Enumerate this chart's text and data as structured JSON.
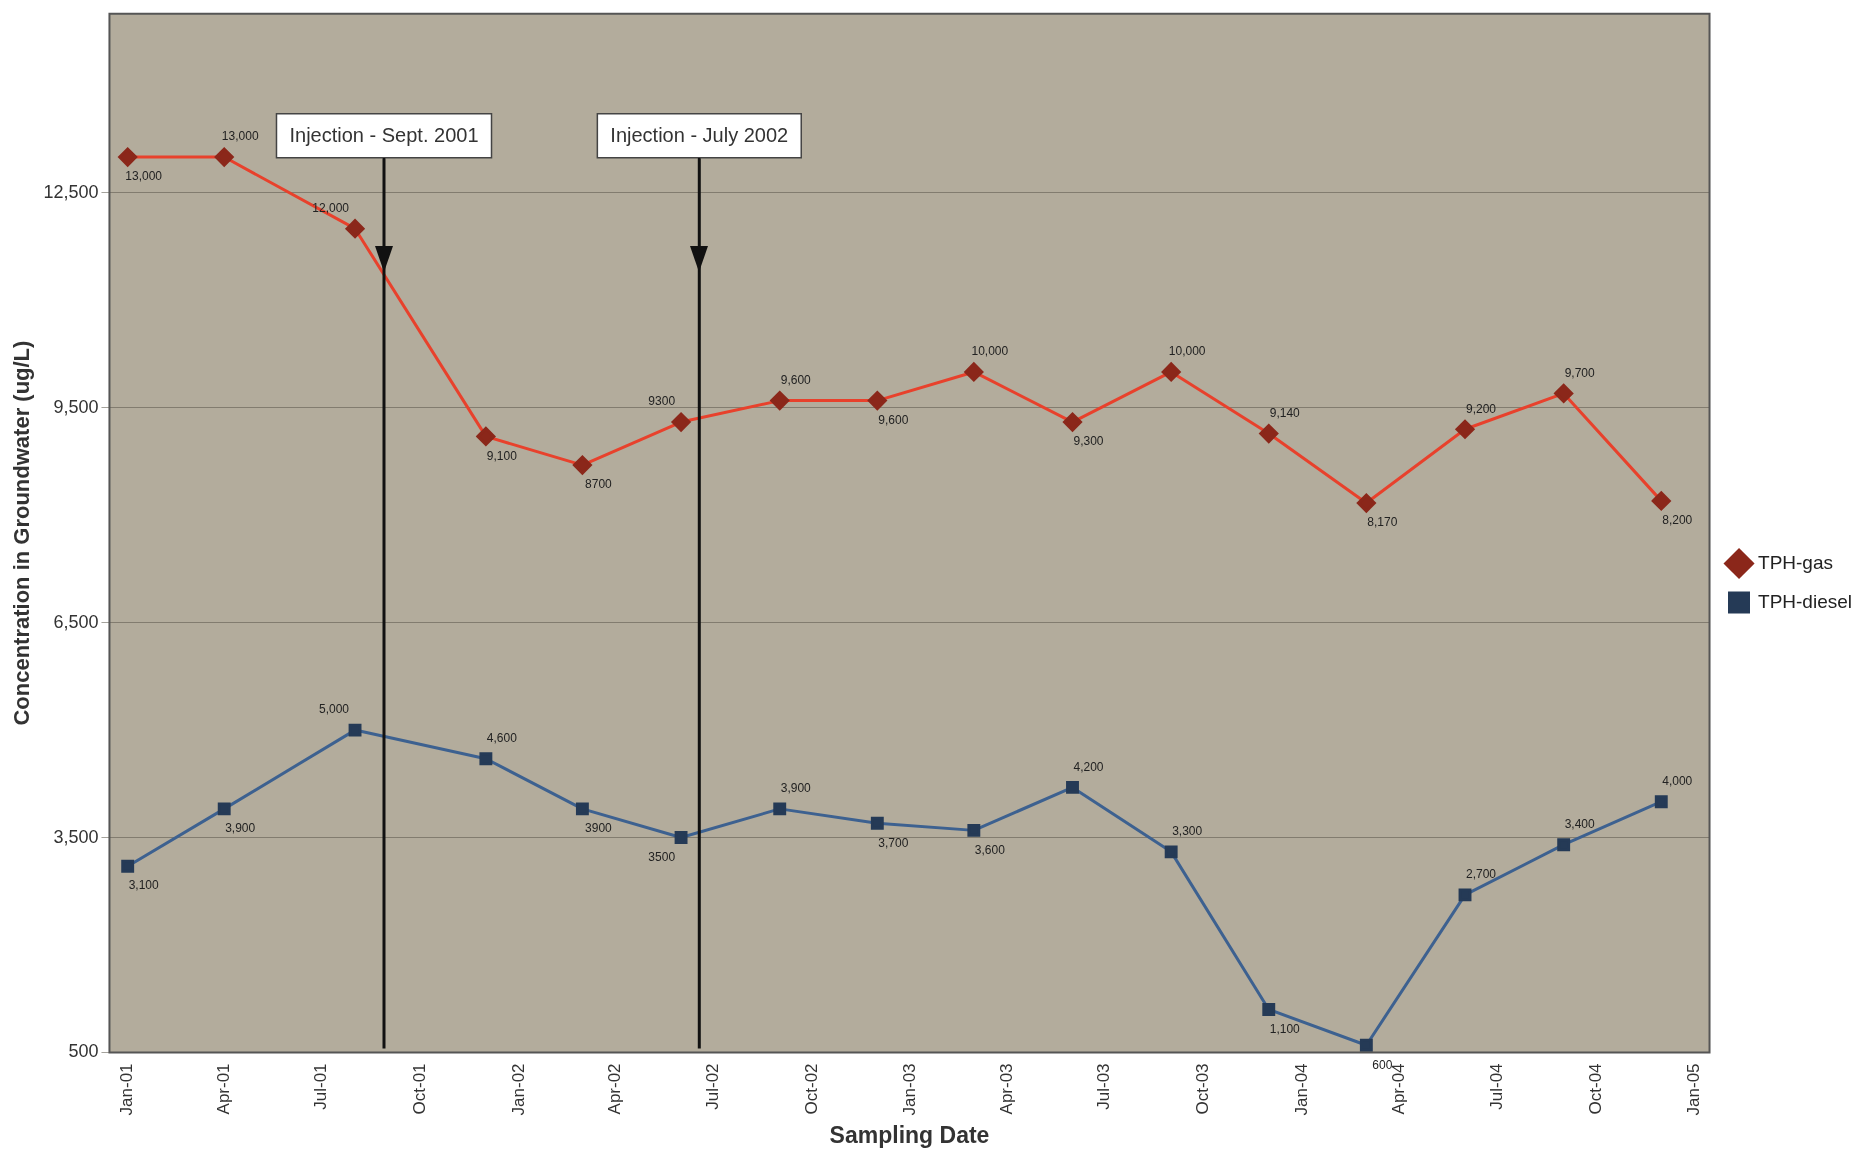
{
  "chart_data": {
    "type": "line",
    "xlabel": "Sampling Date",
    "ylabel": "Concentration in Groundwater (ug/L)",
    "x": [
      "2001-01",
      "2001-04",
      "2001-08",
      "2001-12",
      "2002-03",
      "2002-06",
      "2002-09",
      "2002-12",
      "2003-03",
      "2003-06",
      "2003-09",
      "2003-12",
      "2004-03",
      "2004-06",
      "2004-09",
      "2004-12"
    ],
    "series": [
      {
        "name": "TPH-gas",
        "color": "#e8412c",
        "marker": "diamond",
        "values": [
          13000,
          13000,
          12000,
          9100,
          8700,
          9300,
          9600,
          9600,
          10000,
          9300,
          10000,
          9140,
          8170,
          9200,
          9700,
          8200
        ],
        "value_labels": [
          "13,000",
          "13,000",
          "12,000",
          "9,100",
          "8700",
          "9300",
          "9,600",
          "9,600",
          "10,000",
          "9,300",
          "10,000",
          "9,140",
          "8,170",
          "9,200",
          "9,700",
          "8,200"
        ]
      },
      {
        "name": "TPH-diesel",
        "color": "#3d6190",
        "marker": "square",
        "values": [
          3100,
          3900,
          5000,
          4600,
          3900,
          3500,
          3900,
          3700,
          3600,
          4200,
          3300,
          1100,
          600,
          2700,
          3400,
          4000
        ],
        "value_labels": [
          "3,100",
          "3,900",
          "5,000",
          "4,600",
          "3900",
          "3500",
          "3,900",
          "3,700",
          "3,600",
          "4,200",
          "3,300",
          "1,100",
          "600",
          "2,700",
          "3,400",
          "4,000"
        ]
      }
    ],
    "xlim": [
      "2000-12-15",
      "2005-01-15"
    ],
    "xticks": [
      {
        "value": "2001-01",
        "label": "Jan-01"
      },
      {
        "value": "2001-04",
        "label": "Apr-01"
      },
      {
        "value": "2001-07",
        "label": "Jul-01"
      },
      {
        "value": "2001-10",
        "label": "Oct-01"
      },
      {
        "value": "2002-01",
        "label": "Jan-02"
      },
      {
        "value": "2002-04",
        "label": "Apr-02"
      },
      {
        "value": "2002-07",
        "label": "Jul-02"
      },
      {
        "value": "2002-10",
        "label": "Oct-02"
      },
      {
        "value": "2003-01",
        "label": "Jan-03"
      },
      {
        "value": "2003-04",
        "label": "Apr-03"
      },
      {
        "value": "2003-07",
        "label": "Jul-03"
      },
      {
        "value": "2003-10",
        "label": "Oct-03"
      },
      {
        "value": "2004-01",
        "label": "Jan-04"
      },
      {
        "value": "2004-04",
        "label": "Apr-04"
      },
      {
        "value": "2004-07",
        "label": "Jul-04"
      },
      {
        "value": "2004-10",
        "label": "Oct-04"
      },
      {
        "value": "2005-01",
        "label": "Jan-05"
      }
    ],
    "ylim": [
      500,
      15000
    ],
    "yticks": [
      {
        "value": 500,
        "label": "500"
      },
      {
        "value": 3500,
        "label": "3,500"
      },
      {
        "value": 6500,
        "label": "6,500"
      },
      {
        "value": 9500,
        "label": "9,500"
      },
      {
        "value": 12500,
        "label": "12,500"
      }
    ],
    "ref_lines": [
      {
        "axis": "x",
        "value": "2001-08-28",
        "label": "Injection - Sept. 2001",
        "color": "#111111"
      },
      {
        "axis": "x",
        "value": "2002-06-18",
        "label": "Injection - July 2002",
        "color": "#111111"
      }
    ],
    "grid": "y",
    "legend": "right",
    "line_style": "solid"
  }
}
